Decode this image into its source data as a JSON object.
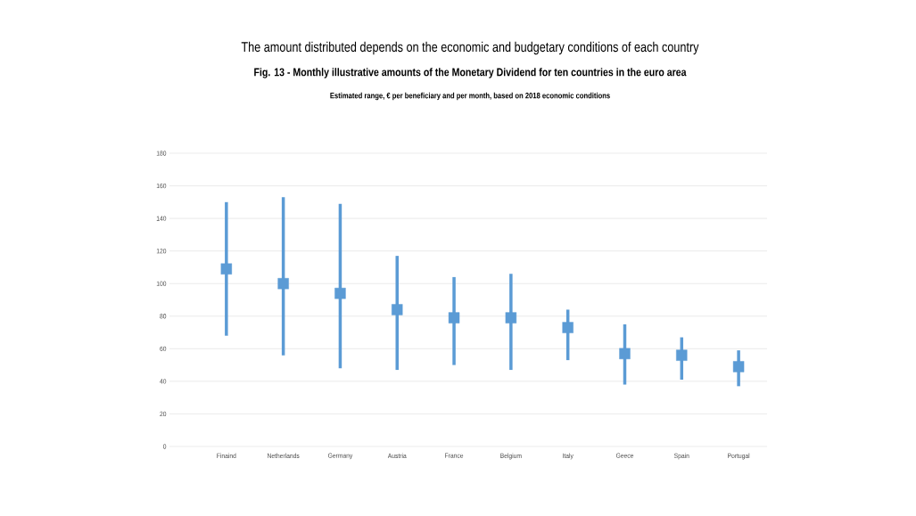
{
  "chart_data": {
    "type": "scatter",
    "title": "The amount distributed depends on the economic and budgetary conditions of each country",
    "subtitle": "Fig. 13 - Monthly illustrative amounts of the Monetary Dividend for ten countries in the euro area",
    "annotations": [
      "Estimated range, € per beneficiary and per month, based on 2018 economic conditions"
    ],
    "categories": [
      "Finaind",
      "Netherlands",
      "Germany",
      "Austria",
      "France",
      "Belgium",
      "Italy",
      "Geece",
      "Spain",
      "Portugal"
    ],
    "values": [
      109,
      100,
      94,
      84,
      79,
      79,
      73,
      57,
      56,
      49
    ],
    "errors": [
      [
        68,
        150
      ],
      [
        56,
        153
      ],
      [
        48,
        149
      ],
      [
        47,
        117
      ],
      [
        50,
        104
      ],
      [
        47,
        106
      ],
      [
        53,
        84
      ],
      [
        38,
        75
      ],
      [
        41,
        67
      ],
      [
        37,
        59
      ]
    ],
    "color": "#5b9bd5",
    "marker": "square",
    "ylim": [
      0,
      180
    ],
    "yticks": [
      0,
      20,
      40,
      60,
      80,
      100,
      120,
      140,
      160,
      180
    ],
    "grid": "y"
  }
}
